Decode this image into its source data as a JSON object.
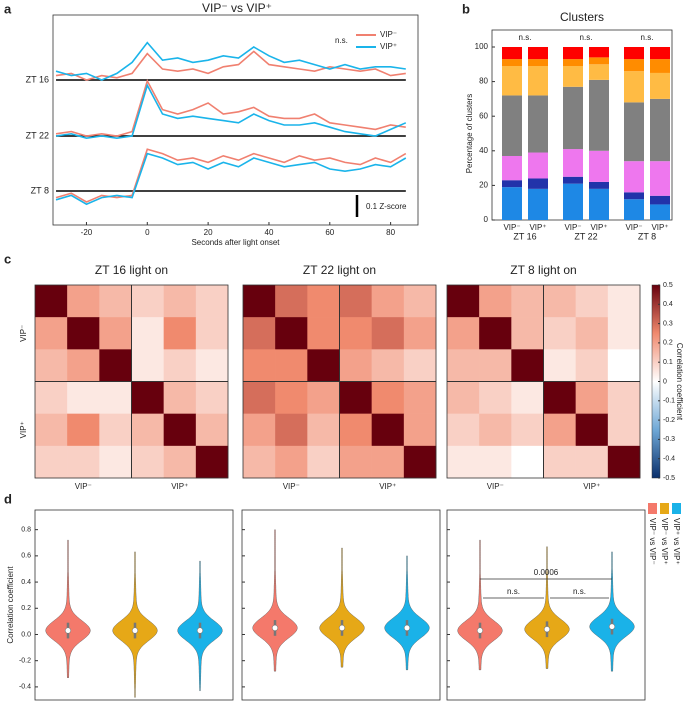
{
  "chart_data": [
    {
      "type": "line",
      "panel": "a",
      "title": "VIP⁻ vs VIP⁺",
      "xlabel": "Seconds after light onset",
      "xlim": [
        -31,
        89
      ],
      "xticks": [
        -20,
        0,
        20,
        40,
        60,
        80
      ],
      "x": [
        -30,
        -25,
        -20,
        -15,
        -10,
        -5,
        0,
        5,
        10,
        15,
        20,
        25,
        30,
        35,
        40,
        45,
        50,
        55,
        60,
        65,
        70,
        75,
        80,
        85
      ],
      "legend_title": "n.s.",
      "series": [
        {
          "name": "VIP⁻",
          "color": "#f08070"
        },
        {
          "name": "VIP⁺",
          "color": "#1ab4ea"
        }
      ],
      "rows": [
        {
          "name": "ZT 16",
          "values": [
            [
              0.02,
              0.03,
              0.0,
              0.02,
              0.01,
              0.03,
              0.12,
              0.05,
              0.04,
              0.05,
              0.03,
              0.06,
              0.07,
              0.13,
              0.07,
              0.06,
              0.05,
              0.04,
              0.06,
              0.05,
              0.04,
              0.05,
              0.02,
              0.03
            ],
            [
              0.04,
              0.02,
              0.03,
              0.0,
              0.03,
              0.08,
              0.17,
              0.09,
              0.1,
              0.08,
              0.09,
              0.11,
              0.1,
              0.15,
              0.11,
              0.08,
              0.09,
              0.07,
              0.05,
              0.07,
              0.05,
              0.06,
              0.06,
              0.05
            ]
          ]
        },
        {
          "name": "ZT 22",
          "values": [
            [
              0.01,
              0.02,
              0.0,
              0.01,
              0.0,
              0.02,
              0.25,
              0.12,
              0.1,
              0.12,
              0.15,
              0.1,
              0.11,
              0.13,
              0.09,
              0.08,
              0.08,
              0.1,
              0.06,
              0.05,
              0.04,
              0.03,
              0.05,
              0.04
            ],
            [
              0.0,
              0.01,
              -0.01,
              0.0,
              -0.01,
              0.0,
              0.23,
              0.1,
              0.08,
              0.09,
              0.08,
              0.07,
              0.06,
              0.1,
              0.07,
              0.05,
              0.05,
              0.06,
              0.04,
              0.02,
              0.01,
              0.0,
              0.03,
              0.06
            ]
          ]
        },
        {
          "name": "ZT 8",
          "values": [
            [
              -0.03,
              -0.01,
              -0.05,
              -0.02,
              -0.03,
              -0.02,
              0.19,
              0.17,
              0.14,
              0.15,
              0.13,
              0.16,
              0.14,
              0.17,
              0.15,
              0.13,
              0.16,
              0.14,
              0.15,
              0.13,
              0.12,
              0.15,
              0.13,
              0.17
            ],
            [
              -0.04,
              -0.02,
              -0.06,
              -0.03,
              -0.02,
              -0.03,
              0.17,
              0.15,
              0.12,
              0.13,
              0.1,
              0.13,
              0.11,
              0.15,
              0.13,
              0.11,
              0.12,
              0.13,
              0.1,
              0.09,
              0.1,
              0.12,
              0.11,
              0.15
            ]
          ]
        }
      ],
      "scale_bar": {
        "value": 0.1,
        "label": "0.1 Z-score"
      }
    },
    {
      "type": "stacked_bar",
      "panel": "b",
      "title": "Clusters",
      "ylabel": "Percentage of clusters",
      "ylim": [
        0,
        100
      ],
      "yticks": [
        0,
        20,
        40,
        60,
        80,
        100
      ],
      "categories": [
        "VIP⁻",
        "VIP⁺",
        "VIP⁻",
        "VIP⁺",
        "VIP⁻",
        "VIP⁺"
      ],
      "groups": [
        "ZT 16",
        "ZT 22",
        "ZT 8"
      ],
      "annotations": [
        "n.s.",
        "n.s.",
        "n.s."
      ],
      "series": [
        {
          "color": "#1e88e5",
          "values": [
            19,
            18,
            21,
            18,
            12,
            9
          ]
        },
        {
          "color": "#2233aa",
          "values": [
            4,
            6,
            4,
            4,
            4,
            5
          ]
        },
        {
          "color": "#ee77ee",
          "values": [
            14,
            15,
            16,
            18,
            18,
            20
          ]
        },
        {
          "color": "#808080",
          "values": [
            35,
            33,
            36,
            41,
            34,
            36
          ]
        },
        {
          "color": "#ffbb44",
          "values": [
            17,
            17,
            12,
            9,
            18,
            15
          ]
        },
        {
          "color": "#ff8c00",
          "values": [
            4,
            4,
            4,
            4,
            7,
            8
          ]
        },
        {
          "color": "#ff0000",
          "values": [
            7,
            7,
            7,
            6,
            7,
            7
          ]
        }
      ]
    },
    {
      "type": "heatmap",
      "panel": "c",
      "row_labels": [
        "VIP⁻",
        "VIP⁺"
      ],
      "col_labels": [
        "VIP⁻",
        "VIP⁺"
      ],
      "colorbar": {
        "label": "Correlation coefficient",
        "lim": [
          -0.5,
          0.5
        ],
        "ticks": [
          -0.5,
          -0.4,
          -0.3,
          -0.2,
          -0.1,
          0,
          0.1,
          0.2,
          0.3,
          0.4,
          0.5
        ]
      },
      "panels": [
        {
          "title": "ZT 16 light on",
          "values": [
            [
              0.5,
              0.2,
              0.15,
              0.1,
              0.15,
              0.1
            ],
            [
              0.2,
              0.5,
              0.2,
              0.05,
              0.25,
              0.1
            ],
            [
              0.15,
              0.2,
              0.5,
              0.05,
              0.1,
              0.05
            ],
            [
              0.1,
              0.05,
              0.05,
              0.5,
              0.15,
              0.1
            ],
            [
              0.15,
              0.25,
              0.1,
              0.15,
              0.5,
              0.15
            ],
            [
              0.1,
              0.1,
              0.05,
              0.1,
              0.15,
              0.5
            ]
          ]
        },
        {
          "title": "ZT 22 light on",
          "values": [
            [
              0.5,
              0.3,
              0.25,
              0.3,
              0.2,
              0.15
            ],
            [
              0.3,
              0.5,
              0.25,
              0.25,
              0.3,
              0.2
            ],
            [
              0.25,
              0.25,
              0.5,
              0.2,
              0.15,
              0.1
            ],
            [
              0.3,
              0.25,
              0.2,
              0.5,
              0.25,
              0.2
            ],
            [
              0.2,
              0.3,
              0.15,
              0.25,
              0.5,
              0.2
            ],
            [
              0.15,
              0.2,
              0.1,
              0.2,
              0.2,
              0.5
            ]
          ]
        },
        {
          "title": "ZT 8 light on",
          "values": [
            [
              0.5,
              0.2,
              0.15,
              0.15,
              0.1,
              0.05
            ],
            [
              0.2,
              0.5,
              0.15,
              0.1,
              0.15,
              0.05
            ],
            [
              0.15,
              0.15,
              0.5,
              0.05,
              0.1,
              0.0
            ],
            [
              0.15,
              0.1,
              0.05,
              0.5,
              0.2,
              0.1
            ],
            [
              0.1,
              0.15,
              0.1,
              0.2,
              0.5,
              0.1
            ],
            [
              0.05,
              0.05,
              0.0,
              0.1,
              0.1,
              0.5
            ]
          ]
        }
      ]
    },
    {
      "type": "violin",
      "panel": "d",
      "ylabel": "Correlation coefficient",
      "ylim": [
        -0.5,
        0.95
      ],
      "yticks": [
        -0.4,
        -0.2,
        {
          "value": 0,
          "label": "0.0"
        },
        0.2,
        0.4,
        0.6,
        0.8
      ],
      "series": [
        {
          "name": "VIP⁻ vs VIP⁻",
          "color": "#f4796b"
        },
        {
          "name": "VIP⁻ vs VIP⁺",
          "color": "#e6a817"
        },
        {
          "name": "VIP⁺ vs VIP⁺",
          "color": "#1ab2e8"
        }
      ],
      "panels": [
        {
          "stats": [
            [
              -0.33,
              0.03,
              0.72
            ],
            [
              -0.48,
              0.03,
              0.63
            ],
            [
              -0.43,
              0.03,
              0.56
            ]
          ]
        },
        {
          "stats": [
            [
              -0.28,
              0.05,
              0.8
            ],
            [
              -0.25,
              0.05,
              0.66
            ],
            [
              -0.27,
              0.05,
              0.6
            ]
          ]
        },
        {
          "stats": [
            [
              -0.27,
              0.03,
              0.72
            ],
            [
              -0.26,
              0.04,
              0.67
            ],
            [
              -0.28,
              0.06,
              0.63
            ]
          ],
          "annotations": [
            "0.0006",
            "n.s.",
            "n.s."
          ]
        }
      ]
    }
  ]
}
